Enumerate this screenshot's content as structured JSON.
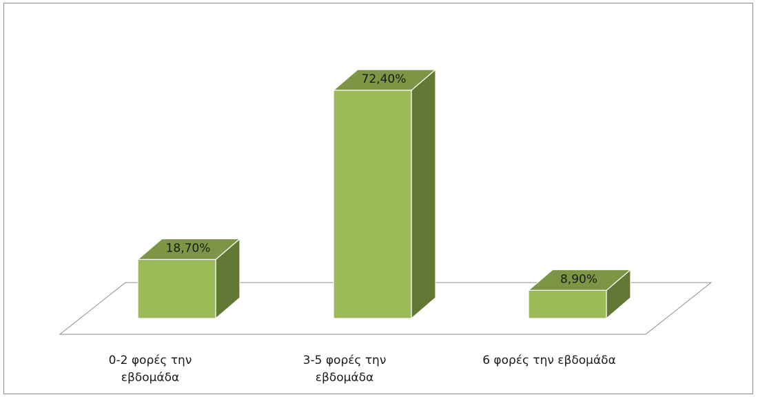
{
  "chart_data": {
    "type": "bar",
    "categories": [
      [
        "0-2 φορές την",
        "εβδομάδα"
      ],
      [
        "3-5 φορές την",
        "εβδομάδα"
      ],
      [
        "6 φορές την εβδομάδα"
      ]
    ],
    "values": [
      18.7,
      72.4,
      8.9
    ],
    "data_labels": [
      "18,70%",
      "72,40%",
      "8,90%"
    ],
    "title": "",
    "xlabel": "",
    "ylabel": "",
    "ylim": [
      0,
      80
    ],
    "grid": false,
    "legend": "none",
    "style": "3d-column",
    "colors": {
      "front": "#9bbb59",
      "top": "#7c9645",
      "side": "#627835",
      "edge": "#ffffff",
      "floor": "#ffffff",
      "floor_stroke": "#8c8c8c"
    }
  }
}
